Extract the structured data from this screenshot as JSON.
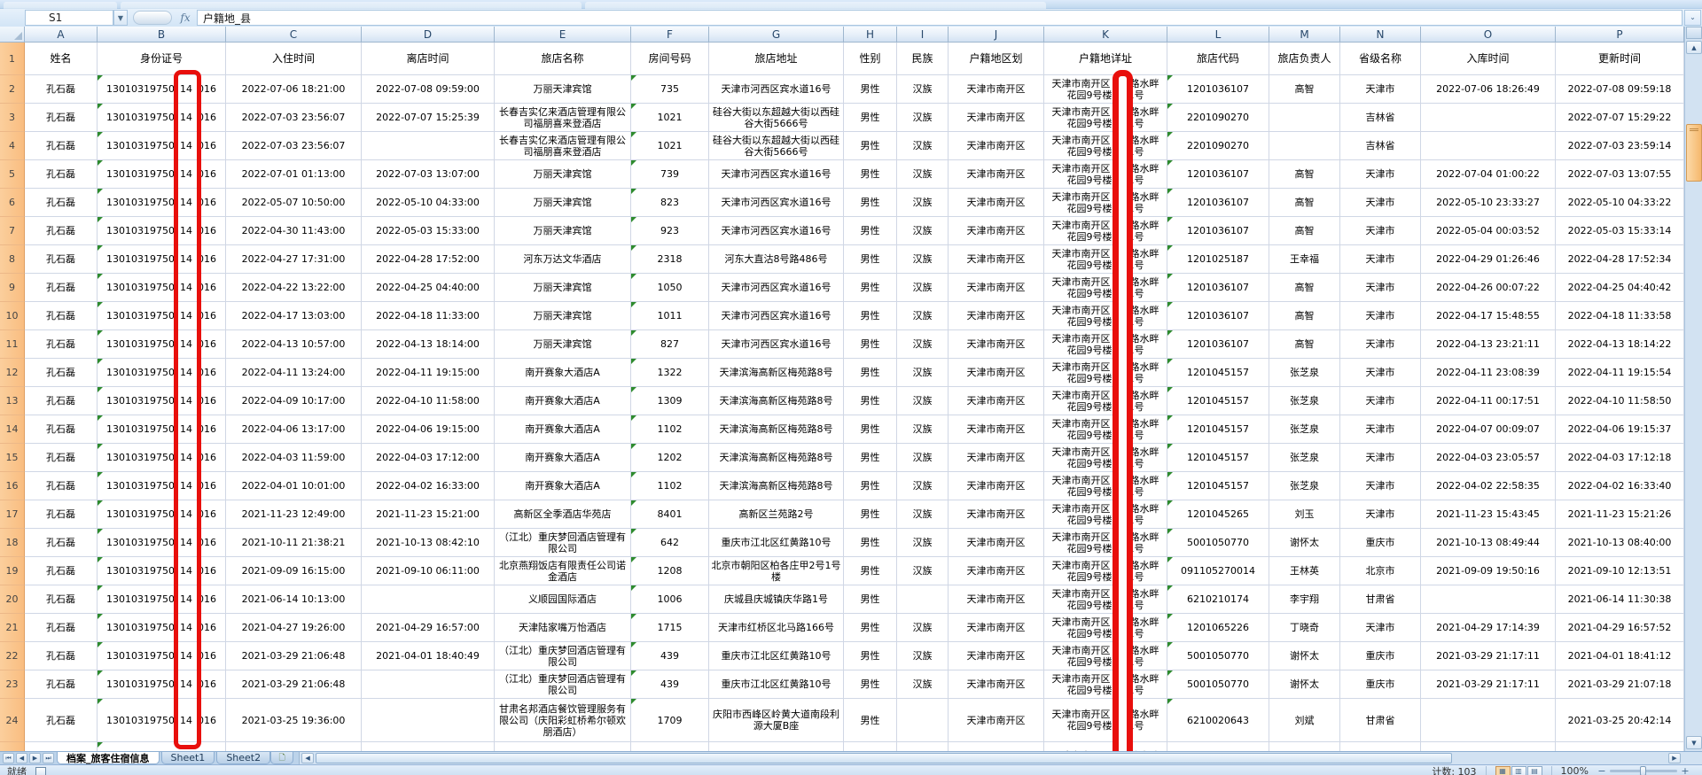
{
  "chrome": {
    "name_box": "S1",
    "name_drop_icon": "▼",
    "fx_label": "fx",
    "formula_value": "户籍地_县",
    "fx_expand_icon": "⌄",
    "accent_red": "#e80f0c"
  },
  "grid": {
    "col_letters": [
      "A",
      "B",
      "C",
      "D",
      "E",
      "F",
      "G",
      "H",
      "I",
      "J",
      "K",
      "L",
      "M",
      "N",
      "O",
      "P"
    ],
    "headers": [
      "姓名",
      "身份证号",
      "入住时间",
      "离店时间",
      "旅店名称",
      "房间号码",
      "旅店地址",
      "性别",
      "民族",
      "户籍地区划",
      "户籍地详址",
      "旅店代码",
      "旅店负责人",
      "省级名称",
      "入库时间",
      "更新时间"
    ],
    "header_row_number": "1",
    "common": {
      "name": "孔石磊",
      "id_prefix": "13010319750",
      "id_highlight": "14",
      "id_suffix": "016",
      "gender": "男性",
      "region": "天津市南开区",
      "detail_line1": "天津市南开区　旗路水畔",
      "detail_line2": "花园9号楼　01号"
    },
    "rows": [
      {
        "n": "2",
        "checkin": "2022-07-06 18:21:00",
        "checkout": "2022-07-08 09:59:00",
        "hotel": "万丽天津宾馆",
        "room": "735",
        "hotel_addr": "天津市河西区宾水道16号",
        "ethnic": "汉族",
        "hotel_code": "1201036107",
        "manager": "高智",
        "province": "天津市",
        "db_in": "2022-07-06 18:26:49",
        "updated": "2022-07-08 09:59:18"
      },
      {
        "n": "3",
        "checkin": "2022-07-03 23:56:07",
        "checkout": "2022-07-07 15:25:39",
        "hotel": "长春吉实亿来酒店管理有限公司福朋喜来登酒店",
        "room": "1021",
        "hotel_addr": "硅谷大街以东超越大街以西硅谷大街5666号",
        "ethnic": "汉族",
        "hotel_code": "2201090270",
        "manager": "",
        "province": "吉林省",
        "db_in": "",
        "updated": "2022-07-07 15:29:22"
      },
      {
        "n": "4",
        "checkin": "2022-07-03 23:56:07",
        "checkout": "",
        "hotel": "长春吉实亿来酒店管理有限公司福朋喜来登酒店",
        "room": "1021",
        "hotel_addr": "硅谷大街以东超越大街以西硅谷大街5666号",
        "ethnic": "汉族",
        "hotel_code": "2201090270",
        "manager": "",
        "province": "吉林省",
        "db_in": "",
        "updated": "2022-07-03 23:59:14"
      },
      {
        "n": "5",
        "checkin": "2022-07-01 01:13:00",
        "checkout": "2022-07-03 13:07:00",
        "hotel": "万丽天津宾馆",
        "room": "739",
        "hotel_addr": "天津市河西区宾水道16号",
        "ethnic": "汉族",
        "hotel_code": "1201036107",
        "manager": "高智",
        "province": "天津市",
        "db_in": "2022-07-04 01:00:22",
        "updated": "2022-07-03 13:07:55"
      },
      {
        "n": "6",
        "checkin": "2022-05-07 10:50:00",
        "checkout": "2022-05-10 04:33:00",
        "hotel": "万丽天津宾馆",
        "room": "823",
        "hotel_addr": "天津市河西区宾水道16号",
        "ethnic": "汉族",
        "hotel_code": "1201036107",
        "manager": "高智",
        "province": "天津市",
        "db_in": "2022-05-10 23:33:27",
        "updated": "2022-05-10 04:33:22"
      },
      {
        "n": "7",
        "checkin": "2022-04-30 11:43:00",
        "checkout": "2022-05-03 15:33:00",
        "hotel": "万丽天津宾馆",
        "room": "923",
        "hotel_addr": "天津市河西区宾水道16号",
        "ethnic": "汉族",
        "hotel_code": "1201036107",
        "manager": "高智",
        "province": "天津市",
        "db_in": "2022-05-04 00:03:52",
        "updated": "2022-05-03 15:33:14"
      },
      {
        "n": "8",
        "checkin": "2022-04-27 17:31:00",
        "checkout": "2022-04-28 17:52:00",
        "hotel": "河东万达文华酒店",
        "room": "2318",
        "hotel_addr": "河东大直沽8号路486号",
        "ethnic": "汉族",
        "hotel_code": "1201025187",
        "manager": "王幸福",
        "province": "天津市",
        "db_in": "2022-04-29 01:26:46",
        "updated": "2022-04-28 17:52:34"
      },
      {
        "n": "9",
        "checkin": "2022-04-22 13:22:00",
        "checkout": "2022-04-25 04:40:00",
        "hotel": "万丽天津宾馆",
        "room": "1050",
        "hotel_addr": "天津市河西区宾水道16号",
        "ethnic": "汉族",
        "hotel_code": "1201036107",
        "manager": "高智",
        "province": "天津市",
        "db_in": "2022-04-26 00:07:22",
        "updated": "2022-04-25 04:40:42"
      },
      {
        "n": "10",
        "checkin": "2022-04-17 13:03:00",
        "checkout": "2022-04-18 11:33:00",
        "hotel": "万丽天津宾馆",
        "room": "1011",
        "hotel_addr": "天津市河西区宾水道16号",
        "ethnic": "汉族",
        "hotel_code": "1201036107",
        "manager": "高智",
        "province": "天津市",
        "db_in": "2022-04-17 15:48:55",
        "updated": "2022-04-18 11:33:58"
      },
      {
        "n": "11",
        "checkin": "2022-04-13 10:57:00",
        "checkout": "2022-04-13 18:14:00",
        "hotel": "万丽天津宾馆",
        "room": "827",
        "hotel_addr": "天津市河西区宾水道16号",
        "ethnic": "汉族",
        "hotel_code": "1201036107",
        "manager": "高智",
        "province": "天津市",
        "db_in": "2022-04-13 23:21:11",
        "updated": "2022-04-13 18:14:22"
      },
      {
        "n": "12",
        "checkin": "2022-04-11 13:24:00",
        "checkout": "2022-04-11 19:15:00",
        "hotel": "南开赛象大酒店A",
        "room": "1322",
        "hotel_addr": "天津滨海高新区梅苑路8号",
        "ethnic": "汉族",
        "hotel_code": "1201045157",
        "manager": "张芝泉",
        "province": "天津市",
        "db_in": "2022-04-11 23:08:39",
        "updated": "2022-04-11 19:15:54"
      },
      {
        "n": "13",
        "checkin": "2022-04-09 10:17:00",
        "checkout": "2022-04-10 11:58:00",
        "hotel": "南开赛象大酒店A",
        "room": "1309",
        "hotel_addr": "天津滨海高新区梅苑路8号",
        "ethnic": "汉族",
        "hotel_code": "1201045157",
        "manager": "张芝泉",
        "province": "天津市",
        "db_in": "2022-04-11 00:17:51",
        "updated": "2022-04-10 11:58:50"
      },
      {
        "n": "14",
        "checkin": "2022-04-06 13:17:00",
        "checkout": "2022-04-06 19:15:00",
        "hotel": "南开赛象大酒店A",
        "room": "1102",
        "hotel_addr": "天津滨海高新区梅苑路8号",
        "ethnic": "汉族",
        "hotel_code": "1201045157",
        "manager": "张芝泉",
        "province": "天津市",
        "db_in": "2022-04-07 00:09:07",
        "updated": "2022-04-06 19:15:37"
      },
      {
        "n": "15",
        "checkin": "2022-04-03 11:59:00",
        "checkout": "2022-04-03 17:12:00",
        "hotel": "南开赛象大酒店A",
        "room": "1202",
        "hotel_addr": "天津滨海高新区梅苑路8号",
        "ethnic": "汉族",
        "hotel_code": "1201045157",
        "manager": "张芝泉",
        "province": "天津市",
        "db_in": "2022-04-03 23:05:57",
        "updated": "2022-04-03 17:12:18"
      },
      {
        "n": "16",
        "checkin": "2022-04-01 10:01:00",
        "checkout": "2022-04-02 16:33:00",
        "hotel": "南开赛象大酒店A",
        "room": "1102",
        "hotel_addr": "天津滨海高新区梅苑路8号",
        "ethnic": "汉族",
        "hotel_code": "1201045157",
        "manager": "张芝泉",
        "province": "天津市",
        "db_in": "2022-04-02 22:58:35",
        "updated": "2022-04-02 16:33:40"
      },
      {
        "n": "17",
        "checkin": "2021-11-23 12:49:00",
        "checkout": "2021-11-23 15:21:00",
        "hotel": "高新区全季酒店华苑店",
        "room": "8401",
        "hotel_addr": "高新区兰苑路2号",
        "ethnic": "汉族",
        "hotel_code": "1201045265",
        "manager": "刘玉",
        "province": "天津市",
        "db_in": "2021-11-23 15:43:45",
        "updated": "2021-11-23 15:21:26"
      },
      {
        "n": "18",
        "checkin": "2021-10-11 21:38:21",
        "checkout": "2021-10-13 08:42:10",
        "hotel": "（江北）重庆梦回酒店管理有限公司",
        "room": "642",
        "hotel_addr": "重庆市江北区红黄路10号",
        "ethnic": "汉族",
        "hotel_code": "5001050770",
        "manager": "谢怀太",
        "province": "重庆市",
        "db_in": "2021-10-13 08:49:44",
        "updated": "2021-10-13 08:40:00"
      },
      {
        "n": "19",
        "checkin": "2021-09-09 16:15:00",
        "checkout": "2021-09-10 06:11:00",
        "hotel": "北京燕翔饭店有限责任公司诺金酒店",
        "room": "1208",
        "hotel_addr": "北京市朝阳区柏各庄甲2号1号楼",
        "ethnic": "汉族",
        "hotel_code": "091105270014",
        "manager": "王林英",
        "province": "北京市",
        "db_in": "2021-09-09 19:50:16",
        "updated": "2021-09-10 12:13:51"
      },
      {
        "n": "20",
        "checkin": "2021-06-14 10:13:00",
        "checkout": "",
        "hotel": "义顺园国际酒店",
        "room": "1006",
        "hotel_addr": "庆城县庆城镇庆华路1号",
        "ethnic": "",
        "hotel_code": "6210210174",
        "manager": "李宇翔",
        "province": "甘肃省",
        "db_in": "",
        "updated": "2021-06-14 11:30:38"
      },
      {
        "n": "21",
        "checkin": "2021-04-27 19:26:00",
        "checkout": "2021-04-29 16:57:00",
        "hotel": "天津陆家嘴万怡酒店",
        "room": "1715",
        "hotel_addr": "天津市红桥区北马路166号",
        "ethnic": "汉族",
        "hotel_code": "1201065226",
        "manager": "丁晓奇",
        "province": "天津市",
        "db_in": "2021-04-29 17:14:39",
        "updated": "2021-04-29 16:57:52"
      },
      {
        "n": "22",
        "checkin": "2021-03-29 21:06:48",
        "checkout": "2021-04-01 18:40:49",
        "hotel": "（江北）重庆梦回酒店管理有限公司",
        "room": "439",
        "hotel_addr": "重庆市江北区红黄路10号",
        "ethnic": "汉族",
        "hotel_code": "5001050770",
        "manager": "谢怀太",
        "province": "重庆市",
        "db_in": "2021-03-29 21:17:11",
        "updated": "2021-04-01 18:41:12"
      },
      {
        "n": "23",
        "checkin": "2021-03-29 21:06:48",
        "checkout": "",
        "hotel": "（江北）重庆梦回酒店管理有限公司",
        "room": "439",
        "hotel_addr": "重庆市江北区红黄路10号",
        "ethnic": "汉族",
        "hotel_code": "5001050770",
        "manager": "谢怀太",
        "province": "重庆市",
        "db_in": "2021-03-29 21:17:11",
        "updated": "2021-03-29 21:07:18"
      },
      {
        "n": "24",
        "checkin": "2021-03-25 19:36:00",
        "checkout": "",
        "hotel": "甘肃名邦酒店餐饮管理服务有限公司（庆阳彩虹桥希尔顿欢朋酒店）",
        "room": "1709",
        "hotel_addr": "庆阳市西峰区岭黄大道南段利源大厦B座",
        "ethnic": "",
        "hotel_code": "6210020643",
        "manager": "刘斌",
        "province": "甘肃省",
        "db_in": "",
        "updated": "2021-03-25 20:42:14",
        "tall": true
      },
      {
        "n": "25",
        "checkin": "",
        "checkout": "",
        "hotel": "",
        "room": "",
        "hotel_addr": "",
        "ethnic": "",
        "hotel_code": "",
        "manager": "",
        "province": "",
        "db_in": "",
        "updated": "",
        "partial": true
      }
    ]
  },
  "tabs": {
    "nav_icons": [
      "⏮",
      "◀",
      "▶",
      "⏭"
    ],
    "sheets": [
      "档案_旅客住宿信息",
      "Sheet1",
      "Sheet2"
    ],
    "active_sheet": "档案_旅客住宿信息",
    "insert_icon": "🗋",
    "h_left_icon": "◀",
    "h_right_icon": "▶"
  },
  "scrollbar": {
    "up_icon": "▲",
    "down_icon": "▼"
  },
  "status": {
    "ready": "就绪",
    "count": "计数: 103",
    "zoom_level": "100%",
    "view_icons": [
      "▦",
      "▥",
      "▤"
    ],
    "zoom_minus": "−",
    "zoom_plus": "+"
  }
}
